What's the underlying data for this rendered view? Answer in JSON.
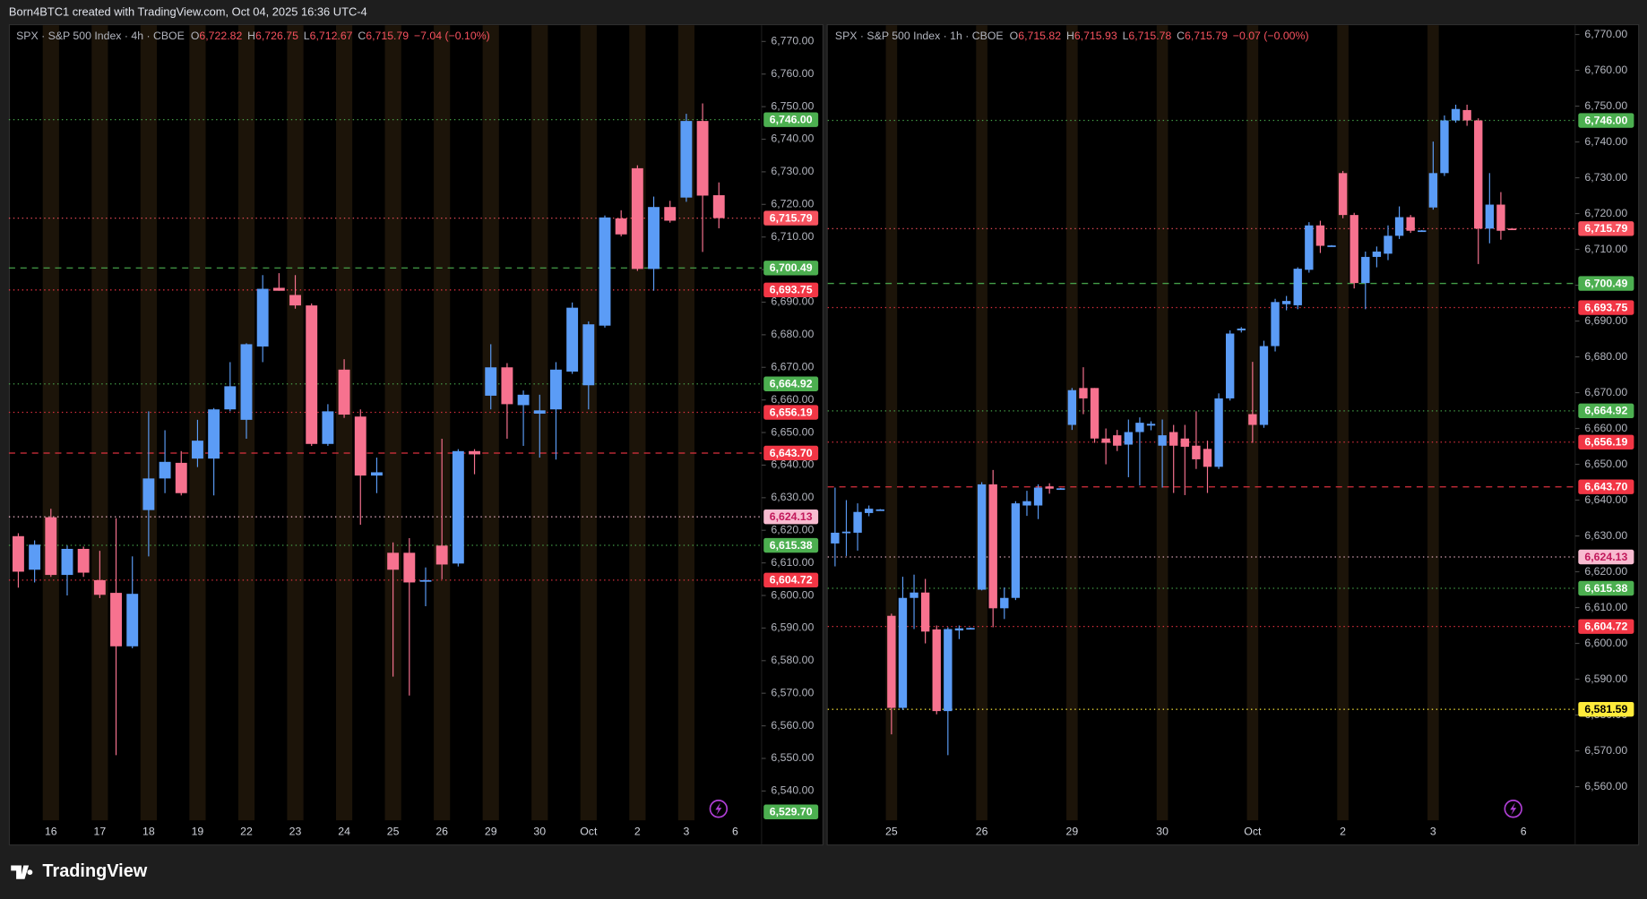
{
  "banner": "Born4BTC1 created with TradingView.com, Oct 04, 2025 16:36 UTC-4",
  "logo": "TradingView",
  "chart_data": [
    {
      "type": "candlestick",
      "title": "SPX · S&P 500 Index · 4h · CBOE",
      "ohlc_legend": [
        {
          "key": "O",
          "value": "6,722.82"
        },
        {
          "key": "H",
          "value": "6,726.75"
        },
        {
          "key": "L",
          "value": "6,712.67"
        },
        {
          "key": "C",
          "value": "6,715.79"
        }
      ],
      "change": "−7.04 (−0.10%)",
      "up_color": "#5b9cf6",
      "down_color": "#f7728f",
      "session_color": "#1c1409",
      "categories": [
        null,
        null,
        "16",
        null,
        null,
        "17",
        null,
        null,
        "18",
        null,
        null,
        "19",
        null,
        null,
        "22",
        null,
        null,
        "23",
        null,
        null,
        "24",
        null,
        null,
        "25",
        null,
        null,
        "26",
        null,
        null,
        "29",
        null,
        null,
        "30",
        null,
        null,
        "Oct",
        null,
        null,
        "2",
        null,
        null,
        "3",
        null,
        null,
        "6"
      ],
      "open": [
        6618.2,
        6607.9,
        6624,
        6606.3,
        6614.3,
        6604.7,
        6600.8,
        6584.4,
        6626.2,
        6635.9,
        6640.7,
        6642,
        6642,
        6657.1,
        6653.9,
        6676.4,
        6694.4,
        6692.2,
        6689,
        6646.5,
        6669.3,
        6654.9,
        6636.8,
        6613.1,
        6613.1,
        6604.4,
        6615.3,
        6609.8,
        6644.3,
        6661.3,
        6670,
        6658.4,
        6655.8,
        6657.1,
        6668.7,
        6664.5,
        6682.8,
        6715.7,
        6731.1,
        6700.2,
        6719.2,
        6722.1,
        6745.6,
        6722.82,
        null
      ],
      "high": [
        6619.1,
        6616.9,
        6626.6,
        6615.3,
        6615,
        6613.7,
        6623.7,
        6612,
        6656.5,
        6650.7,
        6644.3,
        6653.9,
        6657.5,
        6671.6,
        6677.4,
        6698.3,
        6698.9,
        6698.3,
        6689.6,
        6658.7,
        6672.5,
        6657.1,
        6642.3,
        6616.3,
        6617.6,
        6608.6,
        6648.1,
        6644.9,
        6644.9,
        6677.1,
        6671.3,
        6662.9,
        6661.6,
        6671.6,
        6689.9,
        6684.1,
        6716.6,
        6718.2,
        6732,
        6722.4,
        6721.1,
        6747.8,
        6751,
        6726.75,
        null
      ],
      "low": [
        6602.4,
        6604,
        6605.7,
        6600,
        6605.7,
        6599.2,
        6551,
        6583.8,
        6612,
        6631.4,
        6630.7,
        6639.4,
        6630.7,
        6656.5,
        6648.1,
        6671.6,
        6693.5,
        6688,
        6645.9,
        6645.9,
        6654.5,
        6621.7,
        6631.4,
        6575.1,
        6569.3,
        6596.7,
        6605,
        6608.9,
        6637.2,
        6657.1,
        6648.1,
        6645.9,
        6642.3,
        6641.7,
        6668,
        6657.1,
        6682.2,
        6710.2,
        6699.6,
        6693.5,
        6714.4,
        6720.8,
        6705.4,
        6712.67,
        null
      ],
      "close": [
        6607.3,
        6615.6,
        6606.3,
        6614.3,
        6607,
        6600.2,
        6584.4,
        6600.5,
        6635.9,
        6641,
        6631.4,
        6647.5,
        6657.1,
        6664.2,
        6677.1,
        6694.1,
        6693.5,
        6689,
        6646.5,
        6656.5,
        6655.5,
        6636.8,
        6637.8,
        6607.9,
        6604,
        6604.7,
        6609.5,
        6644.3,
        6643.3,
        6670,
        6658.7,
        6661.6,
        6656.8,
        6669.3,
        6688.3,
        6683.2,
        6716,
        6710.8,
        6700.2,
        6719.2,
        6715,
        6745.6,
        6722.7,
        6715.79,
        null
      ],
      "ylim": [
        6531,
        6775
      ],
      "yticks": [
        {
          "value": 6770,
          "label": "6,770.00"
        },
        {
          "value": 6760,
          "label": "6,760.00"
        },
        {
          "value": 6750,
          "label": "6,750.00"
        },
        {
          "value": 6740,
          "label": "6,740.00"
        },
        {
          "value": 6730,
          "label": "6,730.00"
        },
        {
          "value": 6720,
          "label": "6,720.00"
        },
        {
          "value": 6710,
          "label": "6,710.00"
        },
        {
          "value": 6700,
          "label": "6,700.00"
        },
        {
          "value": 6690,
          "label": "6,690.00"
        },
        {
          "value": 6680,
          "label": "6,680.00"
        },
        {
          "value": 6670,
          "label": "6,670.00"
        },
        {
          "value": 6660,
          "label": "6,660.00"
        },
        {
          "value": 6650,
          "label": "6,650.00"
        },
        {
          "value": 6640,
          "label": "6,640.00"
        },
        {
          "value": 6630,
          "label": "6,630.00"
        },
        {
          "value": 6620,
          "label": "6,620.00"
        },
        {
          "value": 6610,
          "label": "6,610.00"
        },
        {
          "value": 6600,
          "label": "6,600.00"
        },
        {
          "value": 6590,
          "label": "6,590.00"
        },
        {
          "value": 6580,
          "label": "6,580.00"
        },
        {
          "value": 6570,
          "label": "6,570.00"
        },
        {
          "value": 6560,
          "label": "6,560.00"
        },
        {
          "value": 6550,
          "label": "6,550.00"
        },
        {
          "value": 6540,
          "label": "6,540.00"
        }
      ],
      "levels": [
        {
          "value": 6746.0,
          "label": "6,746.00",
          "color": "#4caf50",
          "text_color": "#ffffff",
          "style": "dotted"
        },
        {
          "value": 6715.79,
          "label": "6,715.79",
          "color": "#f7525f",
          "text_color": "#ffffff",
          "style": "dotted"
        },
        {
          "value": 6700.49,
          "label": "6,700.49",
          "color": "#4caf50",
          "text_color": "#ffffff",
          "style": "dashed"
        },
        {
          "value": 6693.75,
          "label": "6,693.75",
          "color": "#f23645",
          "text_color": "#ffffff",
          "style": "dotted"
        },
        {
          "value": 6664.92,
          "label": "6,664.92",
          "color": "#4caf50",
          "text_color": "#ffffff",
          "style": "dotted"
        },
        {
          "value": 6656.19,
          "label": "6,656.19",
          "color": "#f23645",
          "text_color": "#ffffff",
          "style": "dotted"
        },
        {
          "value": 6643.7,
          "label": "6,643.70",
          "color": "#f23645",
          "text_color": "#ffffff",
          "style": "dashed"
        },
        {
          "value": 6624.13,
          "label": "6,624.13",
          "color": "#f8bbd0",
          "text_color": "#c2185b",
          "style": "dotted"
        },
        {
          "value": 6615.38,
          "label": "6,615.38",
          "color": "#4caf50",
          "text_color": "#ffffff",
          "style": "dotted"
        },
        {
          "value": 6604.72,
          "label": "6,604.72",
          "color": "#f23645",
          "text_color": "#ffffff",
          "style": "dotted"
        },
        {
          "value": 6529.7,
          "label": "6,529.70",
          "color": "#4caf50",
          "text_color": "#ffffff",
          "style": "dotted"
        }
      ]
    },
    {
      "type": "candlestick",
      "title": "SPX · S&P 500 Index · 1h · CBOE",
      "ohlc_legend": [
        {
          "key": "O",
          "value": "6,715.82"
        },
        {
          "key": "H",
          "value": "6,715.93"
        },
        {
          "key": "L",
          "value": "6,715.78"
        },
        {
          "key": "C",
          "value": "6,715.79"
        }
      ],
      "change": "−0.07 (−0.00%)",
      "up_color": "#5b9cf6",
      "down_color": "#f7728f",
      "session_color": "#1c1409",
      "categories": [
        null,
        null,
        null,
        null,
        null,
        "25",
        null,
        null,
        null,
        null,
        null,
        null,
        null,
        "26",
        null,
        null,
        null,
        null,
        null,
        null,
        null,
        "29",
        null,
        null,
        null,
        null,
        null,
        null,
        null,
        "30",
        null,
        null,
        null,
        null,
        null,
        null,
        null,
        "Oct",
        null,
        null,
        null,
        null,
        null,
        null,
        null,
        "2",
        null,
        null,
        null,
        null,
        null,
        null,
        null,
        "3",
        null,
        null,
        null,
        null,
        null,
        null,
        null,
        "6"
      ],
      "open": [
        6627.9,
        6630.9,
        6630.9,
        6636.4,
        6637.3,
        6607.7,
        6582,
        6612.7,
        6614.2,
        6603.9,
        6581.1,
        6603.6,
        6604.2,
        6615,
        6644.4,
        6609.8,
        6612.7,
        6638.5,
        6638.5,
        6643.8,
        6643.2,
        6661,
        6671.3,
        6671.3,
        6657.2,
        6658.1,
        6655.5,
        6659,
        6660.8,
        6655.2,
        6659,
        6657.2,
        6655.2,
        6654.3,
        6649.3,
        6668.4,
        6687.4,
        6664,
        6661,
        6683,
        6694.7,
        6694.4,
        6704.3,
        6716.7,
        6711,
        6731.3,
        6719.6,
        6700.6,
        6707.9,
        6708.8,
        6713.8,
        6719,
        6715.2,
        6721.7,
        6731.3,
        6746,
        6748.9,
        6746,
        6715.8,
        6722.5,
        6715.82,
        null
      ],
      "high": [
        6643.5,
        6640,
        6639.1,
        6638.5,
        6637.5,
        6608.3,
        6618.6,
        6619.2,
        6618,
        6605,
        6604.5,
        6605,
        6604.4,
        6645,
        6648.4,
        6615.6,
        6639.7,
        6642.6,
        6644.4,
        6644.7,
        6643.4,
        6671.3,
        6677.1,
        6671.3,
        6660,
        6659.6,
        6662.5,
        6663.1,
        6662,
        6662.5,
        6661,
        6661,
        6664.8,
        6656.6,
        6669.8,
        6687.4,
        6688.3,
        6678.6,
        6684.5,
        6696.2,
        6697,
        6705,
        6717.6,
        6718,
        6711.2,
        6731.9,
        6720.2,
        6709.4,
        6710.8,
        6716.7,
        6722,
        6719.6,
        6715.4,
        6740.1,
        6747.4,
        6750.4,
        6750.4,
        6746.6,
        6731.3,
        6726,
        6715.93,
        null
      ],
      "low": [
        6621.5,
        6624.4,
        6625.9,
        6635.5,
        6637.2,
        6574.6,
        6581.4,
        6604,
        6600,
        6580.2,
        6568.8,
        6601.2,
        6604.1,
        6614.8,
        6604.5,
        6606.8,
        6612.1,
        6635.6,
        6634.7,
        6641.8,
        6643.1,
        6659.6,
        6664,
        6656,
        6650,
        6653.7,
        6646.4,
        6644.1,
        6659.5,
        6643.5,
        6642,
        6641.4,
        6648.7,
        6642,
        6648.7,
        6667.8,
        6686.8,
        6656,
        6660.2,
        6681.5,
        6693,
        6693.3,
        6703.5,
        6709,
        6710.9,
        6718.7,
        6699.1,
        6693.3,
        6705,
        6707,
        6712.9,
        6714.6,
        6715.1,
        6721.1,
        6730.5,
        6745.4,
        6744.5,
        6705.9,
        6711.7,
        6712.7,
        6715.78,
        null
      ],
      "close": [
        6630.9,
        6631.2,
        6636.7,
        6637.6,
        6637.4,
        6582,
        6612.7,
        6614.2,
        6603.3,
        6581.1,
        6604,
        6604.2,
        6604.3,
        6644.4,
        6609.8,
        6612.7,
        6639.1,
        6639.7,
        6643.5,
        6643.2,
        6643.3,
        6670.7,
        6668.4,
        6657.2,
        6656,
        6655.2,
        6659,
        6661.6,
        6661.3,
        6658.1,
        6655.2,
        6654.9,
        6651.4,
        6649.3,
        6668.4,
        6686.5,
        6687.9,
        6661,
        6683,
        6695.3,
        6695.6,
        6704.6,
        6716.7,
        6711,
        6711.1,
        6719.6,
        6700.6,
        6707.9,
        6709.4,
        6713.8,
        6719,
        6715.2,
        6715.3,
        6731.3,
        6746,
        6749.2,
        6746,
        6715.8,
        6722.5,
        6715.2,
        6715.79,
        null
      ],
      "ylim": [
        6550.6,
        6772.6
      ],
      "yticks": [
        {
          "value": 6770,
          "label": "6,770.00"
        },
        {
          "value": 6760,
          "label": "6,760.00"
        },
        {
          "value": 6750,
          "label": "6,750.00"
        },
        {
          "value": 6740,
          "label": "6,740.00"
        },
        {
          "value": 6730,
          "label": "6,730.00"
        },
        {
          "value": 6720,
          "label": "6,720.00"
        },
        {
          "value": 6710,
          "label": "6,710.00"
        },
        {
          "value": 6700,
          "label": "6,700.00"
        },
        {
          "value": 6690,
          "label": "6,690.00"
        },
        {
          "value": 6680,
          "label": "6,680.00"
        },
        {
          "value": 6670,
          "label": "6,670.00"
        },
        {
          "value": 6660,
          "label": "6,660.00"
        },
        {
          "value": 6650,
          "label": "6,650.00"
        },
        {
          "value": 6640,
          "label": "6,640.00"
        },
        {
          "value": 6630,
          "label": "6,630.00"
        },
        {
          "value": 6620,
          "label": "6,620.00"
        },
        {
          "value": 6610,
          "label": "6,610.00"
        },
        {
          "value": 6600,
          "label": "6,600.00"
        },
        {
          "value": 6590,
          "label": "6,590.00"
        },
        {
          "value": 6580,
          "label": "6,580.00"
        },
        {
          "value": 6570,
          "label": "6,570.00"
        },
        {
          "value": 6560,
          "label": "6,560.00"
        }
      ],
      "levels": [
        {
          "value": 6746.0,
          "label": "6,746.00",
          "color": "#4caf50",
          "text_color": "#ffffff",
          "style": "dotted"
        },
        {
          "value": 6715.79,
          "label": "6,715.79",
          "color": "#f7525f",
          "text_color": "#ffffff",
          "style": "dotted"
        },
        {
          "value": 6700.49,
          "label": "6,700.49",
          "color": "#4caf50",
          "text_color": "#ffffff",
          "style": "dashed"
        },
        {
          "value": 6693.75,
          "label": "6,693.75",
          "color": "#f23645",
          "text_color": "#ffffff",
          "style": "dotted"
        },
        {
          "value": 6664.92,
          "label": "6,664.92",
          "color": "#4caf50",
          "text_color": "#ffffff",
          "style": "dotted"
        },
        {
          "value": 6656.19,
          "label": "6,656.19",
          "color": "#f23645",
          "text_color": "#ffffff",
          "style": "dotted"
        },
        {
          "value": 6643.7,
          "label": "6,643.70",
          "color": "#f23645",
          "text_color": "#ffffff",
          "style": "dashed"
        },
        {
          "value": 6624.13,
          "label": "6,624.13",
          "color": "#f8bbd0",
          "text_color": "#c2185b",
          "style": "dotted"
        },
        {
          "value": 6615.38,
          "label": "6,615.38",
          "color": "#4caf50",
          "text_color": "#ffffff",
          "style": "dotted"
        },
        {
          "value": 6604.72,
          "label": "6,604.72",
          "color": "#f23645",
          "text_color": "#ffffff",
          "style": "dotted"
        },
        {
          "value": 6581.59,
          "label": "6,581.59",
          "color": "#ffeb3b",
          "text_color": "#000000",
          "style": "dotted"
        }
      ]
    }
  ]
}
